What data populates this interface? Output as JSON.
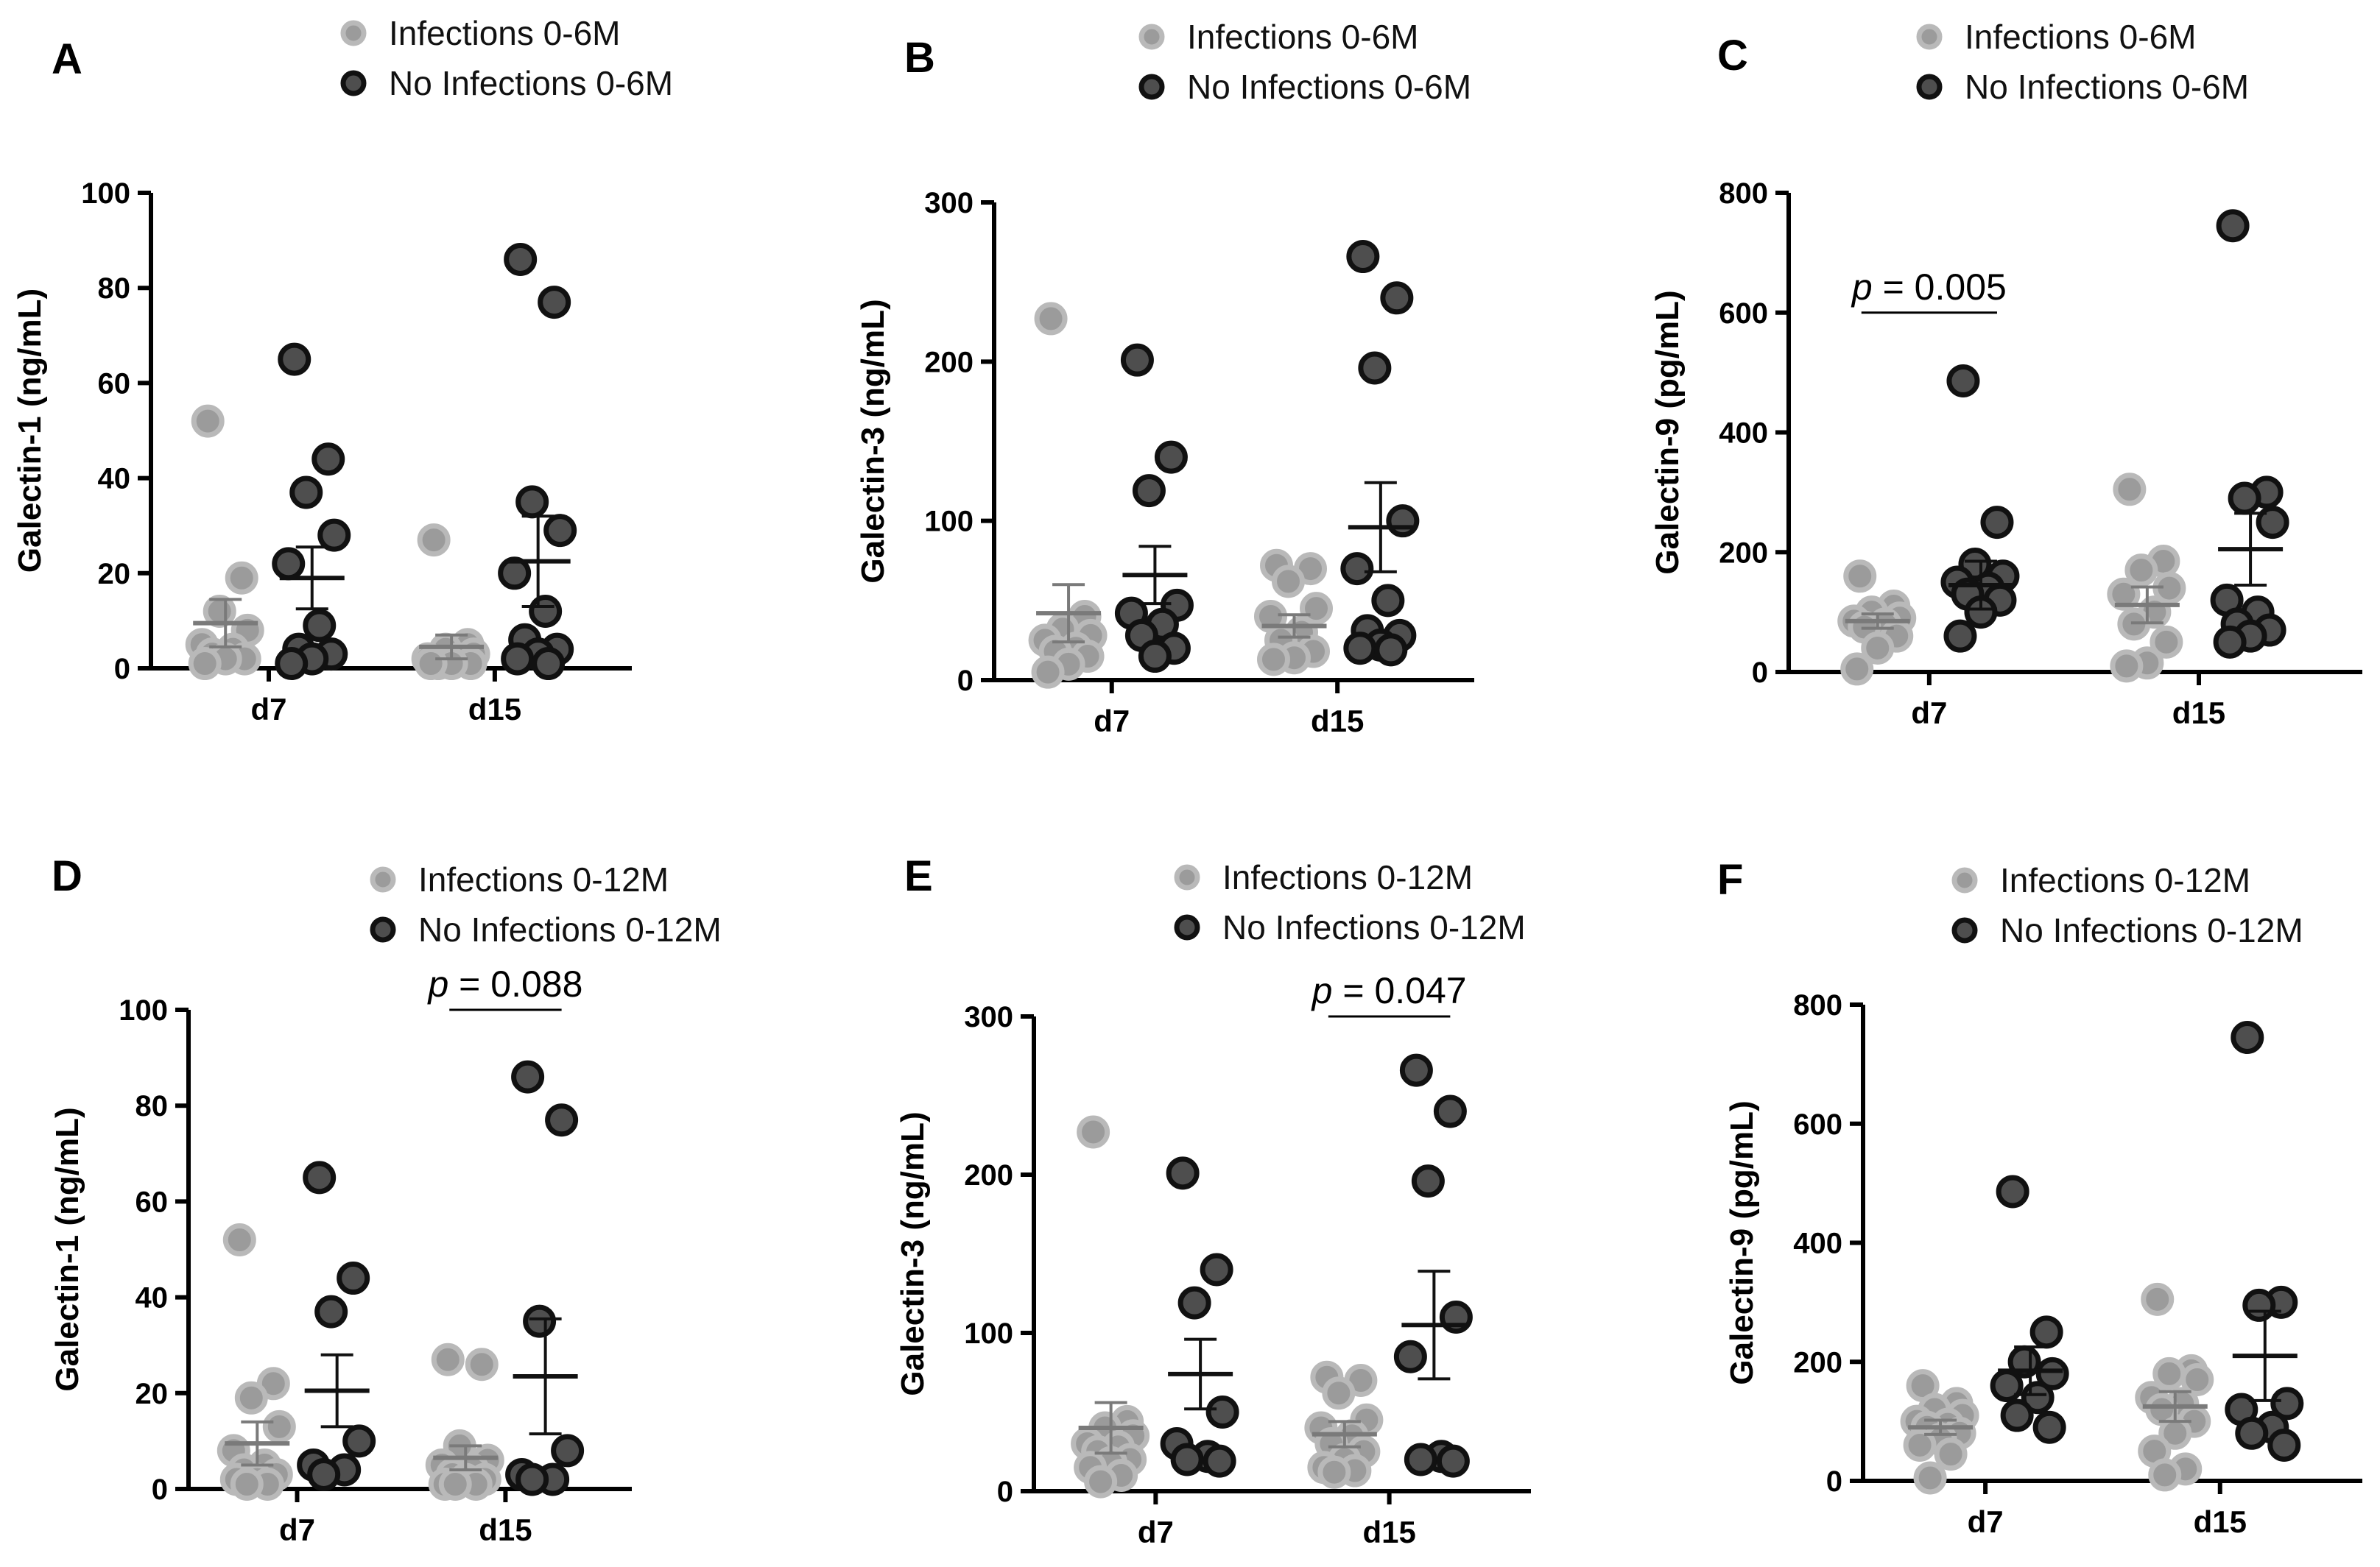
{
  "colors": {
    "group_infected_fill": "#9b9b9b",
    "group_infected_stroke": "#b9b9b9",
    "group_noinf_fill": "#4e4e4e",
    "group_noinf_stroke": "#111111",
    "summary_infected": "#7a7a7a",
    "summary_noinf": "#111111"
  },
  "chart_data": [
    {
      "type": "scatter",
      "panel": "A",
      "ylabel": "Galectin-1 (ng/mL)",
      "categories": [
        "d7",
        "d15"
      ],
      "ylim": [
        0,
        100
      ],
      "yticks": [
        "0",
        "20",
        "40",
        "60",
        "80",
        "100"
      ],
      "legend": [
        "Infections 0-6M",
        "No Infections 0-6M"
      ],
      "pvalue": null,
      "series": [
        {
          "name": "Infections 0-6M",
          "d7": [
            52,
            19,
            12,
            8,
            5,
            4,
            3,
            2,
            2,
            1
          ],
          "d15": [
            27,
            5,
            4,
            3,
            2,
            2,
            1,
            1,
            1,
            1
          ],
          "mean": [
            9.5,
            4.5
          ],
          "sem": [
            5,
            2.5
          ]
        },
        {
          "name": "No Infections 0-6M",
          "d7": [
            65,
            44,
            37,
            28,
            22,
            9,
            4,
            3,
            2,
            1
          ],
          "d15": [
            86,
            77,
            35,
            29,
            20,
            12,
            6,
            4,
            3,
            2,
            1
          ],
          "mean": [
            19,
            22.5
          ],
          "sem": [
            6.5,
            9.5
          ]
        }
      ]
    },
    {
      "type": "scatter",
      "panel": "B",
      "ylabel": "Galectin-3 (ng/mL)",
      "categories": [
        "d7",
        "d15"
      ],
      "ylim": [
        0,
        300
      ],
      "yticks": [
        "0",
        "100",
        "200",
        "300"
      ],
      "legend": [
        "Infections 0-6M",
        "No Infections 0-6M"
      ],
      "pvalue": null,
      "series": [
        {
          "name": "Infections 0-6M",
          "d7": [
            227,
            40,
            32,
            28,
            25,
            20,
            18,
            15,
            10,
            5
          ],
          "d15": [
            72,
            70,
            62,
            45,
            40,
            30,
            25,
            18,
            14,
            13
          ],
          "mean": [
            42,
            34
          ],
          "sem": [
            18,
            7
          ]
        },
        {
          "name": "No Infections 0-6M",
          "d7": [
            201,
            140,
            119,
            47,
            42,
            35,
            28,
            20,
            15
          ],
          "d15": [
            266,
            240,
            196,
            100,
            70,
            50,
            31,
            28,
            22,
            20,
            19
          ],
          "mean": [
            66,
            96
          ],
          "sem": [
            18,
            28
          ]
        }
      ]
    },
    {
      "type": "scatter",
      "panel": "C",
      "ylabel": "Galectin-9 (pg/mL)",
      "categories": [
        "d7",
        "d15"
      ],
      "ylim": [
        0,
        800
      ],
      "yticks": [
        "0",
        "200",
        "400",
        "600",
        "800"
      ],
      "legend": [
        "Infections 0-6M",
        "No Infections 0-6M"
      ],
      "pvalue": {
        "p": "p",
        "rest": " = 0.005",
        "between": [
          0,
          1
        ],
        "group": 0,
        "y": 600
      },
      "series": [
        {
          "name": "Infections 0-6M",
          "d7": [
            160,
            110,
            100,
            90,
            85,
            80,
            75,
            60,
            40,
            5
          ],
          "d15": [
            305,
            185,
            170,
            140,
            130,
            100,
            80,
            50,
            15,
            10
          ],
          "mean": [
            85,
            112
          ],
          "sem": [
            12,
            30
          ]
        },
        {
          "name": "No Infections 0-6M",
          "d7": [
            486,
            250,
            180,
            160,
            150,
            140,
            130,
            120,
            100,
            60
          ],
          "d15": [
            745,
            300,
            290,
            250,
            120,
            100,
            80,
            70,
            60,
            50
          ],
          "mean": [
            145,
            205
          ],
          "sem": [
            40,
            60
          ]
        }
      ]
    },
    {
      "type": "scatter",
      "panel": "D",
      "ylabel": "Galectin-1 (ng/mL)",
      "categories": [
        "d7",
        "d15"
      ],
      "ylim": [
        0,
        100
      ],
      "yticks": [
        "0",
        "20",
        "40",
        "60",
        "80",
        "100"
      ],
      "legend": [
        "Infections 0-12M",
        "No Infections 0-12M"
      ],
      "pvalue": {
        "p": "p",
        "rest": " = 0.088",
        "between": [
          0,
          1
        ],
        "group": 1,
        "y": 100
      },
      "series": [
        {
          "name": "Infections 0-12M",
          "d7": [
            52,
            22,
            19,
            13,
            8,
            5,
            4,
            3,
            2,
            2,
            1,
            1
          ],
          "d15": [
            27,
            26,
            9,
            6,
            5,
            4,
            3,
            2,
            2,
            1,
            1,
            1
          ],
          "mean": [
            9.5,
            6.5
          ],
          "sem": [
            4.5,
            2.5
          ]
        },
        {
          "name": "No Infections 0-12M",
          "d7": [
            65,
            44,
            37,
            10,
            5,
            4,
            3
          ],
          "d15": [
            86,
            77,
            35,
            8,
            3,
            2,
            2
          ],
          "mean": [
            20.5,
            23.5
          ],
          "sem": [
            7.5,
            12
          ]
        }
      ]
    },
    {
      "type": "scatter",
      "panel": "E",
      "ylabel": "Galectin-3 (ng/mL)",
      "categories": [
        "d7",
        "d15"
      ],
      "ylim": [
        0,
        300
      ],
      "yticks": [
        "0",
        "100",
        "200",
        "300"
      ],
      "legend": [
        "Infections 0-12M",
        "No Infections 0-12M"
      ],
      "pvalue": {
        "p": "p",
        "rest": " = 0.047",
        "between": [
          0,
          1
        ],
        "group": 1,
        "y": 300
      },
      "series": [
        {
          "name": "Infections 0-12M",
          "d7": [
            227,
            44,
            40,
            35,
            30,
            28,
            25,
            20,
            18,
            15,
            10,
            6
          ],
          "d15": [
            72,
            70,
            62,
            45,
            40,
            35,
            30,
            25,
            20,
            15,
            13,
            12
          ],
          "mean": [
            40,
            36
          ],
          "sem": [
            16,
            8
          ]
        },
        {
          "name": "No Infections 0-12M",
          "d7": [
            201,
            140,
            119,
            50,
            30,
            22,
            20,
            19
          ],
          "d15": [
            266,
            240,
            196,
            110,
            85,
            22,
            20,
            19
          ],
          "mean": [
            74,
            105
          ],
          "sem": [
            22,
            34
          ]
        }
      ]
    },
    {
      "type": "scatter",
      "panel": "F",
      "ylabel": "Galectin-9 (pg/mL)",
      "categories": [
        "d7",
        "d15"
      ],
      "ylim": [
        0,
        800
      ],
      "yticks": [
        "0",
        "200",
        "400",
        "600",
        "800"
      ],
      "legend": [
        "Infections 0-12M",
        "No Infections 0-12M"
      ],
      "pvalue": null,
      "series": [
        {
          "name": "Infections 0-12M",
          "d7": [
            160,
            130,
            120,
            110,
            100,
            95,
            90,
            80,
            70,
            60,
            45,
            5
          ],
          "d15": [
            305,
            185,
            180,
            170,
            140,
            130,
            120,
            100,
            80,
            50,
            20,
            10
          ],
          "mean": [
            90,
            125
          ],
          "sem": [
            12,
            25
          ]
        },
        {
          "name": "No Infections 0-12M",
          "d7": [
            486,
            250,
            200,
            180,
            160,
            140,
            110,
            90
          ],
          "d15": [
            745,
            300,
            295,
            130,
            120,
            90,
            80,
            60
          ],
          "mean": [
            185,
            210
          ],
          "sem": [
            40,
            75
          ]
        }
      ]
    }
  ]
}
